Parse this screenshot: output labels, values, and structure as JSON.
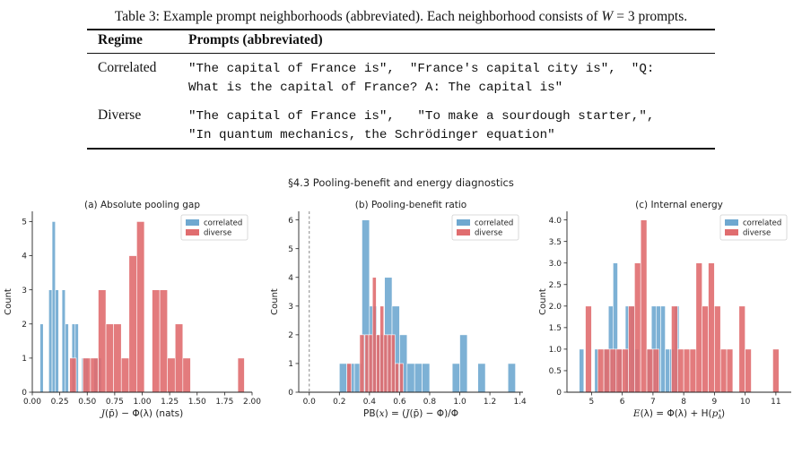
{
  "caption": {
    "prefix": "Table 3: Example prompt neighborhoods (abbreviated). Each neighborhood consists of ",
    "math_var": "W",
    "math_eq": " = 3",
    "suffix": " prompts."
  },
  "table": {
    "headers": [
      "Regime",
      "Prompts (abbreviated)"
    ],
    "rows": [
      {
        "regime": "Correlated",
        "lines": [
          "\"The capital of France is\",  \"France's capital city is\",  \"Q:",
          "What is the capital of France? A: The capital is\""
        ]
      },
      {
        "regime": "Diverse",
        "lines": [
          "\"The capital of France is\",   \"To make a sourdough starter,\",",
          "\"In quantum mechanics, the Schrödinger equation\""
        ]
      }
    ]
  },
  "figure": {
    "suptitle": "§4.3 Pooling-benefit and energy diagnostics",
    "colors": {
      "correlated": "#6fa8d0",
      "diverse": "#e06d6f"
    }
  },
  "chart_data": [
    {
      "type": "histogram",
      "title": "(a) Absolute pooling gap",
      "xlabel": "J(p̄) − Φ(λ) (nats)",
      "ylabel": "Count",
      "xlim": [
        0.0,
        2.0
      ],
      "ylim": [
        0,
        5.3
      ],
      "xticks": [
        0.0,
        0.25,
        0.5,
        0.75,
        1.0,
        1.25,
        1.5,
        1.75,
        2.0
      ],
      "xtick_labels": [
        "0.00",
        "0.25",
        "0.50",
        "0.75",
        "1.00",
        "1.25",
        "1.50",
        "1.75",
        "2.00"
      ],
      "yticks": [
        0,
        1,
        2,
        3,
        4,
        5
      ],
      "legend": "top-right",
      "series": [
        {
          "name": "correlated",
          "bins": [
            {
              "x0": 0.07,
              "x1": 0.1,
              "count": 2
            },
            {
              "x0": 0.15,
              "x1": 0.18,
              "count": 3
            },
            {
              "x0": 0.18,
              "x1": 0.21,
              "count": 5
            },
            {
              "x0": 0.21,
              "x1": 0.24,
              "count": 3
            },
            {
              "x0": 0.27,
              "x1": 0.3,
              "count": 3
            },
            {
              "x0": 0.3,
              "x1": 0.33,
              "count": 2
            },
            {
              "x0": 0.36,
              "x1": 0.39,
              "count": 2
            },
            {
              "x0": 0.39,
              "x1": 0.42,
              "count": 2
            },
            {
              "x0": 0.45,
              "x1": 0.48,
              "count": 1
            },
            {
              "x0": 0.48,
              "x1": 0.51,
              "count": 1
            },
            {
              "x0": 0.56,
              "x1": 0.59,
              "count": 1
            },
            {
              "x0": 0.6,
              "x1": 0.63,
              "count": 1
            }
          ]
        },
        {
          "name": "diverse",
          "bins": [
            {
              "x0": 0.34,
              "x1": 0.4,
              "count": 1
            },
            {
              "x0": 0.46,
              "x1": 0.53,
              "count": 1
            },
            {
              "x0": 0.53,
              "x1": 0.6,
              "count": 1
            },
            {
              "x0": 0.6,
              "x1": 0.67,
              "count": 3
            },
            {
              "x0": 0.67,
              "x1": 0.74,
              "count": 2
            },
            {
              "x0": 0.74,
              "x1": 0.81,
              "count": 2
            },
            {
              "x0": 0.81,
              "x1": 0.88,
              "count": 1
            },
            {
              "x0": 0.88,
              "x1": 0.95,
              "count": 4
            },
            {
              "x0": 0.95,
              "x1": 1.02,
              "count": 5
            },
            {
              "x0": 1.09,
              "x1": 1.16,
              "count": 3
            },
            {
              "x0": 1.16,
              "x1": 1.23,
              "count": 3
            },
            {
              "x0": 1.23,
              "x1": 1.3,
              "count": 1
            },
            {
              "x0": 1.3,
              "x1": 1.37,
              "count": 2
            },
            {
              "x0": 1.37,
              "x1": 1.44,
              "count": 1
            },
            {
              "x0": 1.87,
              "x1": 1.93,
              "count": 1
            }
          ]
        }
      ]
    },
    {
      "type": "histogram",
      "title": "(b) Pooling-benefit ratio",
      "xlabel": "PB(x) = (J(p̄) − Φ)/Φ",
      "ylabel": "Count",
      "xlim": [
        -0.07,
        1.42
      ],
      "ylim": [
        0,
        6.3
      ],
      "xticks": [
        0.0,
        0.2,
        0.4,
        0.6,
        0.8,
        1.0,
        1.2,
        1.4
      ],
      "xtick_labels": [
        "0.0",
        "0.2",
        "0.4",
        "0.6",
        "0.8",
        "1.0",
        "1.2",
        "1.4"
      ],
      "yticks": [
        0,
        1,
        2,
        3,
        4,
        5,
        6
      ],
      "legend": "top-right",
      "reference_line_x": 0.0,
      "series": [
        {
          "name": "correlated",
          "bins": [
            {
              "x0": 0.2,
              "x1": 0.25,
              "count": 1
            },
            {
              "x0": 0.25,
              "x1": 0.3,
              "count": 1
            },
            {
              "x0": 0.3,
              "x1": 0.35,
              "count": 1
            },
            {
              "x0": 0.35,
              "x1": 0.4,
              "count": 6
            },
            {
              "x0": 0.4,
              "x1": 0.45,
              "count": 3
            },
            {
              "x0": 0.45,
              "x1": 0.5,
              "count": 2
            },
            {
              "x0": 0.5,
              "x1": 0.55,
              "count": 4
            },
            {
              "x0": 0.55,
              "x1": 0.6,
              "count": 3
            },
            {
              "x0": 0.6,
              "x1": 0.65,
              "count": 2
            },
            {
              "x0": 0.65,
              "x1": 0.7,
              "count": 1
            },
            {
              "x0": 0.7,
              "x1": 0.75,
              "count": 1
            },
            {
              "x0": 0.75,
              "x1": 0.8,
              "count": 1
            },
            {
              "x0": 0.95,
              "x1": 1.0,
              "count": 1
            },
            {
              "x0": 1.0,
              "x1": 1.05,
              "count": 2
            },
            {
              "x0": 1.12,
              "x1": 1.17,
              "count": 1
            },
            {
              "x0": 1.32,
              "x1": 1.37,
              "count": 1
            }
          ]
        },
        {
          "name": "diverse",
          "bins": [
            {
              "x0": 0.25,
              "x1": 0.28,
              "count": 1
            },
            {
              "x0": 0.335,
              "x1": 0.365,
              "count": 2
            },
            {
              "x0": 0.37,
              "x1": 0.395,
              "count": 2
            },
            {
              "x0": 0.395,
              "x1": 0.42,
              "count": 2
            },
            {
              "x0": 0.42,
              "x1": 0.445,
              "count": 4
            },
            {
              "x0": 0.445,
              "x1": 0.47,
              "count": 2
            },
            {
              "x0": 0.47,
              "x1": 0.495,
              "count": 3
            },
            {
              "x0": 0.495,
              "x1": 0.52,
              "count": 2
            },
            {
              "x0": 0.52,
              "x1": 0.545,
              "count": 2
            },
            {
              "x0": 0.545,
              "x1": 0.57,
              "count": 2
            },
            {
              "x0": 0.57,
              "x1": 0.595,
              "count": 1
            },
            {
              "x0": 0.6,
              "x1": 0.625,
              "count": 1
            }
          ]
        }
      ]
    },
    {
      "type": "histogram",
      "title": "(c) Internal energy",
      "xlabel": "E(λ) = Φ(λ) + H(p_λ*)",
      "ylabel": "Count",
      "xlim": [
        4.2,
        11.5
      ],
      "ylim": [
        0,
        4.2
      ],
      "xticks": [
        5,
        6,
        7,
        8,
        9,
        10,
        11
      ],
      "xtick_labels": [
        "5",
        "6",
        "7",
        "8",
        "9",
        "10",
        "11"
      ],
      "yticks": [
        0,
        0.5,
        1.0,
        1.5,
        2.0,
        2.5,
        3.0,
        3.5,
        4.0
      ],
      "ytick_labels": [
        "0",
        "0.5",
        "1.0",
        "1.5",
        "2.0",
        "2.5",
        "3.0",
        "3.5",
        "4.0"
      ],
      "legend": "top-right",
      "series": [
        {
          "name": "correlated",
          "bins": [
            {
              "x0": 4.6,
              "x1": 4.75,
              "count": 1
            },
            {
              "x0": 5.1,
              "x1": 5.25,
              "count": 1
            },
            {
              "x0": 5.4,
              "x1": 5.55,
              "count": 1
            },
            {
              "x0": 5.55,
              "x1": 5.7,
              "count": 2
            },
            {
              "x0": 5.7,
              "x1": 5.85,
              "count": 3
            },
            {
              "x0": 5.85,
              "x1": 6.0,
              "count": 1
            },
            {
              "x0": 6.1,
              "x1": 6.25,
              "count": 2
            },
            {
              "x0": 6.25,
              "x1": 6.4,
              "count": 2
            },
            {
              "x0": 6.4,
              "x1": 6.55,
              "count": 1
            },
            {
              "x0": 6.8,
              "x1": 6.95,
              "count": 1
            },
            {
              "x0": 6.95,
              "x1": 7.1,
              "count": 2
            },
            {
              "x0": 7.1,
              "x1": 7.25,
              "count": 2
            },
            {
              "x0": 7.25,
              "x1": 7.4,
              "count": 2
            },
            {
              "x0": 7.4,
              "x1": 7.55,
              "count": 1
            },
            {
              "x0": 7.55,
              "x1": 7.7,
              "count": 1
            },
            {
              "x0": 7.7,
              "x1": 7.85,
              "count": 2
            }
          ]
        },
        {
          "name": "diverse",
          "bins": [
            {
              "x0": 4.8,
              "x1": 5.0,
              "count": 2
            },
            {
              "x0": 5.2,
              "x1": 5.4,
              "count": 1
            },
            {
              "x0": 5.4,
              "x1": 5.6,
              "count": 1
            },
            {
              "x0": 5.6,
              "x1": 5.8,
              "count": 1
            },
            {
              "x0": 5.8,
              "x1": 6.0,
              "count": 1
            },
            {
              "x0": 6.0,
              "x1": 6.2,
              "count": 1
            },
            {
              "x0": 6.2,
              "x1": 6.4,
              "count": 2
            },
            {
              "x0": 6.4,
              "x1": 6.6,
              "count": 3
            },
            {
              "x0": 6.6,
              "x1": 6.8,
              "count": 4
            },
            {
              "x0": 6.8,
              "x1": 7.0,
              "count": 1
            },
            {
              "x0": 7.0,
              "x1": 7.2,
              "count": 1
            },
            {
              "x0": 7.6,
              "x1": 7.8,
              "count": 2
            },
            {
              "x0": 7.8,
              "x1": 8.0,
              "count": 1
            },
            {
              "x0": 8.0,
              "x1": 8.2,
              "count": 1
            },
            {
              "x0": 8.2,
              "x1": 8.4,
              "count": 1
            },
            {
              "x0": 8.4,
              "x1": 8.6,
              "count": 3
            },
            {
              "x0": 8.6,
              "x1": 8.8,
              "count": 2
            },
            {
              "x0": 8.8,
              "x1": 9.0,
              "count": 3
            },
            {
              "x0": 9.0,
              "x1": 9.2,
              "count": 2
            },
            {
              "x0": 9.2,
              "x1": 9.4,
              "count": 1
            },
            {
              "x0": 9.4,
              "x1": 9.6,
              "count": 1
            },
            {
              "x0": 9.8,
              "x1": 10.0,
              "count": 2
            },
            {
              "x0": 10.0,
              "x1": 10.2,
              "count": 1
            },
            {
              "x0": 10.9,
              "x1": 11.1,
              "count": 1
            }
          ]
        }
      ]
    }
  ]
}
